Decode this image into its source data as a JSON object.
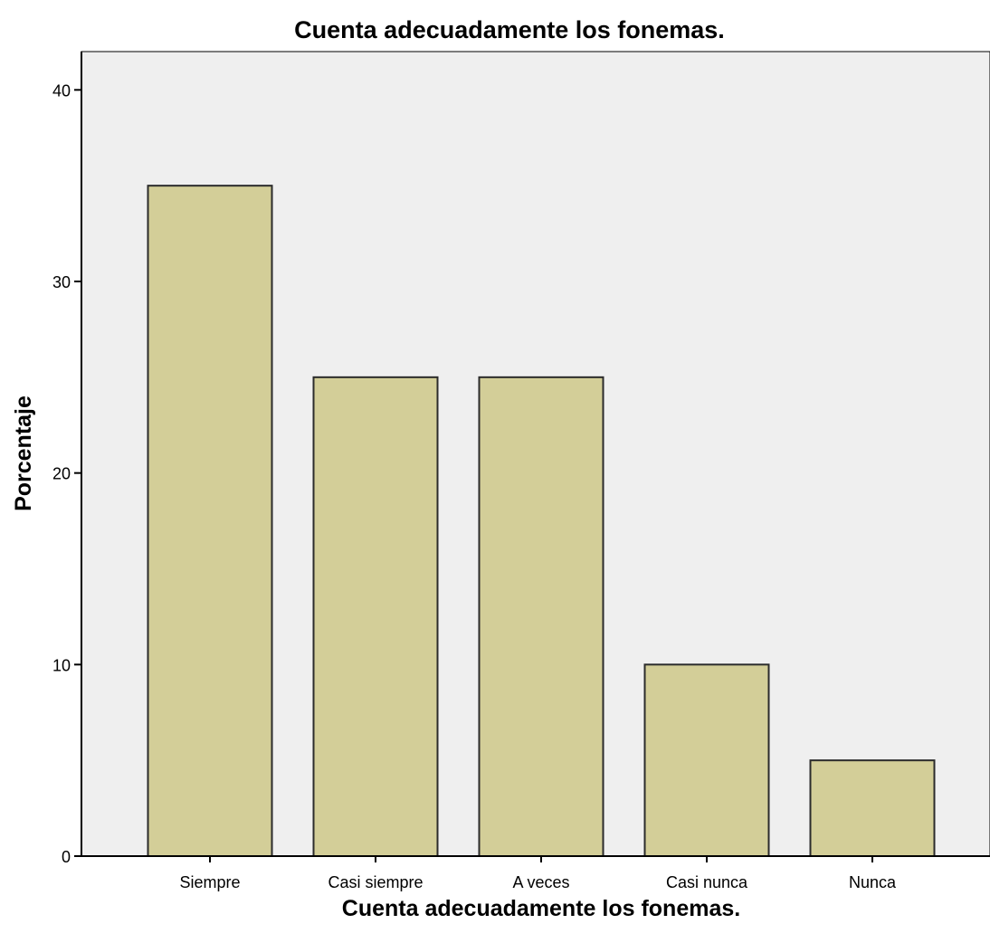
{
  "chart_data": {
    "type": "bar",
    "title": "Cuenta adecuadamente los fonemas.",
    "xlabel": "Cuenta adecuadamente los fonemas.",
    "ylabel": "Porcentaje",
    "categories": [
      "Siempre",
      "Casi siempre",
      "A veces",
      "Casi nunca",
      "Nunca"
    ],
    "values": [
      35,
      25,
      25,
      10,
      5
    ],
    "ylim": [
      0,
      42
    ],
    "yticks": [
      "0",
      "10",
      "20",
      "30",
      "40"
    ],
    "grid": false,
    "colors": {
      "bar_fill": "#d3ce98",
      "bar_stroke": "#2b2b2b",
      "plot_background": "#efefef",
      "axis": "#000000"
    }
  }
}
